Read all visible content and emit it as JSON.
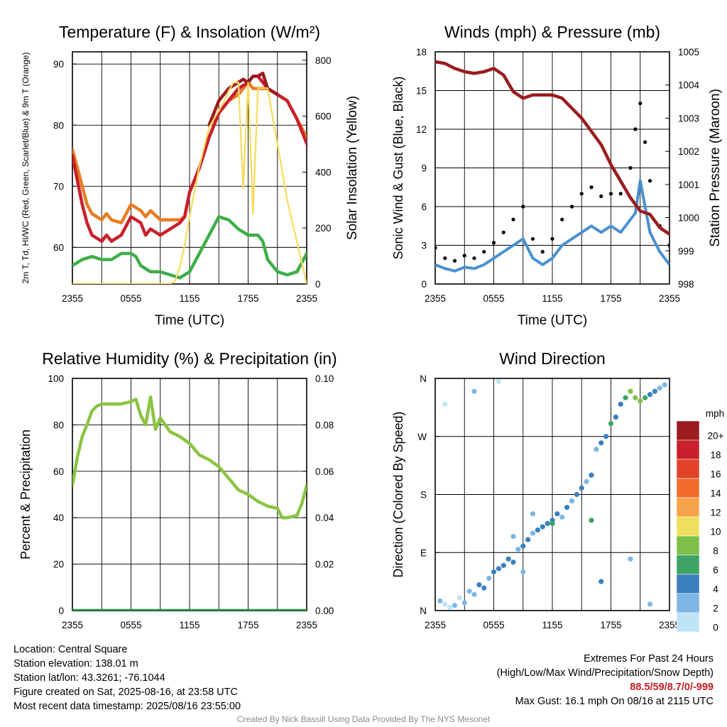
{
  "chart_data": [
    {
      "id": "temp",
      "type": "line",
      "title": "Temperature (F) & Insolation (W/m²)",
      "xlabel": "Time (UTC)",
      "ylabel": "2m T, Td, HI/WC (Red, Green, Scarlet/Blue) & 9m T (Orange)",
      "ylabel2": "Solar Insolation (Yellow)",
      "x_ticks": [
        "2355",
        "0555",
        "1155",
        "1755",
        "2355"
      ],
      "xlim": [
        0,
        24
      ],
      "ylim": [
        54,
        92
      ],
      "y_ticks": [
        60,
        70,
        80,
        90
      ],
      "y2lim": [
        0,
        830
      ],
      "y2_ticks": [
        0,
        200,
        400,
        600,
        800
      ],
      "series": [
        {
          "color": "#e87c23",
          "axis": "left",
          "x": [
            0,
            0.5,
            1,
            1.5,
            2,
            2.5,
            3,
            3.5,
            4,
            5,
            6,
            7,
            7.5,
            8,
            9,
            10,
            11,
            11.5,
            12,
            13,
            14,
            15,
            16,
            17,
            18,
            18.5,
            19,
            19.5,
            20,
            21,
            22,
            23,
            24
          ],
          "y": [
            76,
            73,
            70,
            67,
            65.5,
            65,
            64.5,
            65.5,
            64.5,
            64,
            67,
            66,
            65,
            66,
            64.5,
            64.5,
            64.5,
            65,
            69,
            73,
            78,
            82,
            84,
            85,
            87,
            86,
            86,
            86,
            86,
            85,
            84,
            81,
            78
          ]
        },
        {
          "color": "#c8202c",
          "axis": "left",
          "x": [
            0,
            0.5,
            1,
            1.5,
            2,
            2.5,
            3,
            3.5,
            4,
            5,
            6,
            7,
            7.5,
            8,
            9,
            10,
            11,
            11.5,
            12,
            13,
            14,
            15,
            16,
            17,
            18,
            18.5,
            19,
            19.5,
            20,
            21,
            22,
            23,
            24
          ],
          "y": [
            75,
            71,
            67,
            64,
            62,
            61.5,
            61,
            62,
            61,
            62,
            65,
            64,
            62,
            63,
            62,
            63,
            64,
            65,
            69,
            73,
            78,
            82,
            84,
            86,
            87,
            88,
            88,
            87,
            86,
            85,
            84,
            81,
            77
          ]
        },
        {
          "color": "#9b1b1e",
          "axis": "left",
          "x": [
            14,
            15,
            16,
            17,
            17.5,
            18,
            18.5,
            19,
            19.5,
            20,
            21
          ],
          "y": [
            80,
            84,
            86,
            87,
            87.5,
            87,
            88,
            88,
            88.5,
            86,
            85
          ]
        },
        {
          "color": "#3fae49",
          "axis": "left",
          "x": [
            0,
            1,
            2,
            3,
            4,
            5,
            6,
            6.5,
            7,
            8,
            9,
            10,
            11,
            12,
            13,
            14,
            15,
            16,
            17,
            18,
            19,
            19.5,
            20,
            21,
            22,
            23,
            24
          ],
          "y": [
            57,
            58,
            58.5,
            58,
            58,
            59,
            59,
            58.5,
            57,
            56,
            56,
            55.5,
            55,
            56,
            59,
            62,
            65,
            64.5,
            63,
            62,
            62,
            61,
            58,
            56,
            55.5,
            56,
            59
          ]
        },
        {
          "color": "#f5dc5a",
          "axis": "right",
          "x": [
            0,
            1,
            2,
            3,
            4,
            5,
            6,
            7,
            8,
            9,
            10,
            10.5,
            11,
            11.5,
            12,
            13,
            14,
            15,
            15.5,
            16,
            16.5,
            17,
            17.5,
            18,
            18.5,
            19,
            19.5,
            20,
            20.5,
            21,
            22,
            23,
            24
          ],
          "y": [
            0,
            0,
            0,
            0,
            0,
            0,
            0,
            0,
            0,
            0,
            0,
            10,
            60,
            140,
            240,
            420,
            560,
            620,
            650,
            690,
            720,
            720,
            340,
            720,
            250,
            700,
            700,
            700,
            600,
            500,
            300,
            150,
            0
          ]
        }
      ]
    },
    {
      "id": "winds",
      "type": "scatter",
      "title": "Winds (mph) & Pressure (mb)",
      "xlabel": "Time (UTC)",
      "ylabel": "Sonic Wind & Gust (Blue, Black)",
      "ylabel2": "Station Pressure (Maroon)",
      "x_ticks": [
        "2355",
        "0555",
        "1155",
        "1755",
        "2355"
      ],
      "xlim": [
        0,
        24
      ],
      "ylim": [
        0,
        18
      ],
      "y_ticks": [
        0,
        3,
        6,
        9,
        12,
        15,
        18
      ],
      "y2lim": [
        998,
        1005
      ],
      "y2_ticks": [
        998,
        999,
        1000,
        1001,
        1002,
        1003,
        1004,
        1005
      ],
      "series": [
        {
          "color": "#4a90cf",
          "axis": "left",
          "x": [
            0,
            1,
            2,
            3,
            4,
            5,
            6,
            7,
            8,
            9,
            10,
            11,
            12,
            13,
            14,
            15,
            16,
            17,
            18,
            19,
            20,
            20.5,
            21,
            21.5,
            22,
            23,
            24
          ],
          "y": [
            1.5,
            1.2,
            1,
            1.3,
            1.2,
            1.5,
            2,
            2.5,
            3,
            3.5,
            2,
            1.5,
            2,
            3,
            3.5,
            4,
            4.5,
            4,
            4.5,
            4,
            5,
            5.5,
            8,
            6,
            4,
            2.5,
            1.5
          ]
        },
        {
          "color": "#000000",
          "axis": "left",
          "x": [
            0,
            1,
            2,
            3,
            4,
            5,
            6,
            7,
            8,
            9,
            10,
            11,
            12,
            13,
            14,
            15,
            16,
            17,
            18,
            19,
            20,
            20.5,
            21,
            21.5,
            22,
            23,
            24
          ],
          "y": [
            2.8,
            2,
            1.8,
            2.2,
            2,
            2.5,
            3.2,
            4,
            5,
            6,
            3.5,
            2.5,
            3.5,
            5,
            6,
            7,
            7.5,
            6.8,
            7,
            7,
            9,
            12,
            14,
            11,
            8,
            4.5,
            3
          ]
        },
        {
          "color": "#9b1b1e",
          "axis": "right",
          "x": [
            0,
            1,
            2,
            3,
            4,
            5,
            6,
            7,
            8,
            9,
            10,
            11,
            12,
            13,
            14,
            15,
            16,
            17,
            18,
            19,
            20,
            21,
            22,
            23,
            24
          ],
          "y": [
            1004.7,
            1004.65,
            1004.5,
            1004.4,
            1004.35,
            1004.4,
            1004.5,
            1004.3,
            1003.8,
            1003.6,
            1003.7,
            1003.7,
            1003.7,
            1003.6,
            1003.3,
            1003.0,
            1002.6,
            1002.2,
            1001.6,
            1001.1,
            1000.6,
            1000.2,
            1000.1,
            999.7,
            999.5
          ]
        }
      ]
    },
    {
      "id": "rh",
      "type": "line",
      "title": "Relative Humidity (%) & Precipitation (in)",
      "xlabel": "",
      "ylabel": "Percent & Precipitation",
      "x_ticks": [
        "2355",
        "0555",
        "1155",
        "1755",
        "2355"
      ],
      "xlim": [
        0,
        24
      ],
      "ylim": [
        0,
        100
      ],
      "y_ticks": [
        0,
        20,
        40,
        60,
        80,
        100
      ],
      "y2lim": [
        0,
        0.1
      ],
      "y2_ticks": [
        "0.00",
        "0.02",
        "0.04",
        "0.06",
        "0.08",
        "0.10"
      ],
      "series": [
        {
          "color": "#8cc443",
          "axis": "left",
          "x": [
            0,
            0.5,
            1,
            1.5,
            2,
            2.5,
            3,
            3.5,
            4,
            5,
            6,
            6.5,
            7,
            7.5,
            8,
            8.5,
            9,
            10,
            11,
            12,
            13,
            14,
            15,
            16,
            17,
            18,
            19,
            20,
            21,
            21.5,
            22,
            23,
            23.5,
            24
          ],
          "y": [
            54,
            66,
            75,
            80,
            86,
            88,
            89,
            89,
            89,
            89,
            90,
            91,
            84,
            80,
            92,
            78,
            83,
            77,
            75,
            72,
            67,
            65,
            62,
            57,
            52,
            50,
            47,
            45,
            44,
            40,
            40,
            41,
            46,
            54
          ]
        },
        {
          "color": "#2e9a45",
          "axis": "right",
          "x": [
            0,
            24
          ],
          "y": [
            0,
            0
          ]
        }
      ]
    },
    {
      "id": "dir",
      "type": "scatter",
      "title": "Wind Direction",
      "xlabel": "",
      "ylabel": "Direction (Colored By Speed)",
      "x_ticks": [
        "2355",
        "0555",
        "1155",
        "1755",
        "2355"
      ],
      "xlim": [
        0,
        24
      ],
      "ylim": [
        0,
        360
      ],
      "y_ticks": [
        "N",
        "E",
        "S",
        "W",
        "N"
      ],
      "colorbar_unit": "mph",
      "colorbar_labels": [
        "20+",
        "18",
        "16",
        "14",
        "12",
        "10",
        "8",
        "6",
        "4",
        "2",
        "0"
      ],
      "colorbar_colors": [
        "#9b1b1e",
        "#c8202c",
        "#e2422a",
        "#f06a2b",
        "#f5a34a",
        "#ece05c",
        "#7ec04a",
        "#3ea363",
        "#3a7fbe",
        "#7cb6e4",
        "#bfe3f7"
      ],
      "points": [
        [
          0.5,
          15,
          1
        ],
        [
          1,
          10,
          0
        ],
        [
          1.5,
          5,
          0
        ],
        [
          2,
          8,
          1
        ],
        [
          2.5,
          20,
          0
        ],
        [
          3,
          12,
          1
        ],
        [
          3.5,
          30,
          2
        ],
        [
          4,
          25,
          2
        ],
        [
          4.5,
          40,
          3
        ],
        [
          5,
          35,
          3
        ],
        [
          5.5,
          50,
          2
        ],
        [
          6,
          60,
          3
        ],
        [
          6.5,
          65,
          3
        ],
        [
          7,
          70,
          4
        ],
        [
          7.5,
          80,
          4
        ],
        [
          8,
          75,
          3
        ],
        [
          8.5,
          95,
          2
        ],
        [
          9,
          100,
          4
        ],
        [
          9.5,
          110,
          3
        ],
        [
          10,
          120,
          2
        ],
        [
          10.5,
          125,
          4
        ],
        [
          11,
          130,
          3
        ],
        [
          11.5,
          135,
          4
        ],
        [
          12,
          140,
          3
        ],
        [
          12.5,
          150,
          4
        ],
        [
          13,
          145,
          2
        ],
        [
          13.5,
          160,
          3
        ],
        [
          14,
          170,
          2
        ],
        [
          14.5,
          180,
          4
        ],
        [
          15,
          190,
          3
        ],
        [
          15.5,
          200,
          2
        ],
        [
          16,
          210,
          3
        ],
        [
          16.5,
          250,
          2
        ],
        [
          17,
          260,
          4
        ],
        [
          17.5,
          270,
          3
        ],
        [
          18,
          290,
          5
        ],
        [
          18.5,
          300,
          4
        ],
        [
          19,
          320,
          4
        ],
        [
          19.5,
          330,
          6
        ],
        [
          20,
          340,
          7
        ],
        [
          20.5,
          330,
          8
        ],
        [
          21,
          325,
          7
        ],
        [
          21.5,
          330,
          5
        ],
        [
          22,
          335,
          4
        ],
        [
          22.5,
          340,
          3
        ],
        [
          23,
          345,
          2
        ],
        [
          23.5,
          350,
          1
        ],
        [
          8,
          115,
          1
        ],
        [
          9,
          60,
          2
        ],
        [
          10,
          150,
          2
        ],
        [
          12,
          135,
          6
        ],
        [
          16,
          140,
          5
        ],
        [
          17,
          45,
          3
        ],
        [
          20,
          80,
          2
        ],
        [
          22,
          10,
          1
        ],
        [
          4,
          340,
          1
        ],
        [
          1,
          320,
          0
        ],
        [
          6.5,
          355,
          0
        ]
      ]
    }
  ],
  "info": {
    "location": "Location: Central Square",
    "elevation": "Station elevation: 138.01 m",
    "latlon": "Station lat/lon: 43.3261; -76.1044",
    "created": "Figure created on Sat, 2025-08-16, at 23:58 UTC",
    "recent": "Most recent data timestamp: 2025/08/16 23:55:00"
  },
  "extremes": {
    "title": "Extremes For Past 24 Hours",
    "legend": "(High/Low/Max Wind/Precipitation/Snow Depth)",
    "values": "88.5/59/8.7/0/-999",
    "max_gust": "Max Gust: 16.1 mph On 08/16 at 2115 UTC"
  },
  "credit": "Created By Nick Bassill Using Data Provided By The NYS Mesonet"
}
